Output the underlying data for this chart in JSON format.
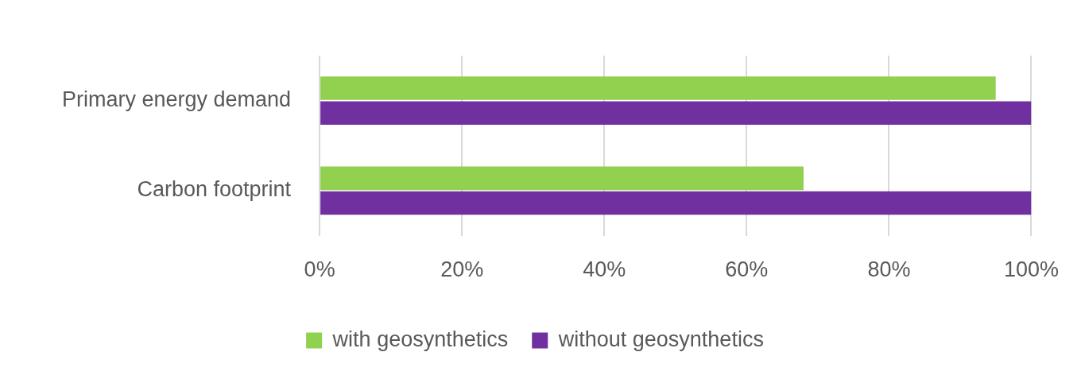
{
  "chart_data": {
    "type": "bar",
    "orientation": "horizontal",
    "categories": [
      "Primary energy demand",
      "Carbon footprint"
    ],
    "series": [
      {
        "name": "with geosynthetics",
        "color": "#92d050",
        "values": [
          95,
          68
        ]
      },
      {
        "name": "without geosynthetics",
        "color": "#7030a0",
        "values": [
          100,
          100
        ]
      }
    ],
    "xlim": [
      0,
      100
    ],
    "xticks": [
      {
        "value": 0,
        "label": "0%"
      },
      {
        "value": 20,
        "label": "20%"
      },
      {
        "value": 40,
        "label": "40%"
      },
      {
        "value": 60,
        "label": "60%"
      },
      {
        "value": 80,
        "label": "80%"
      },
      {
        "value": 100,
        "label": "100%"
      }
    ],
    "grid": "x",
    "legend": "bottom"
  }
}
